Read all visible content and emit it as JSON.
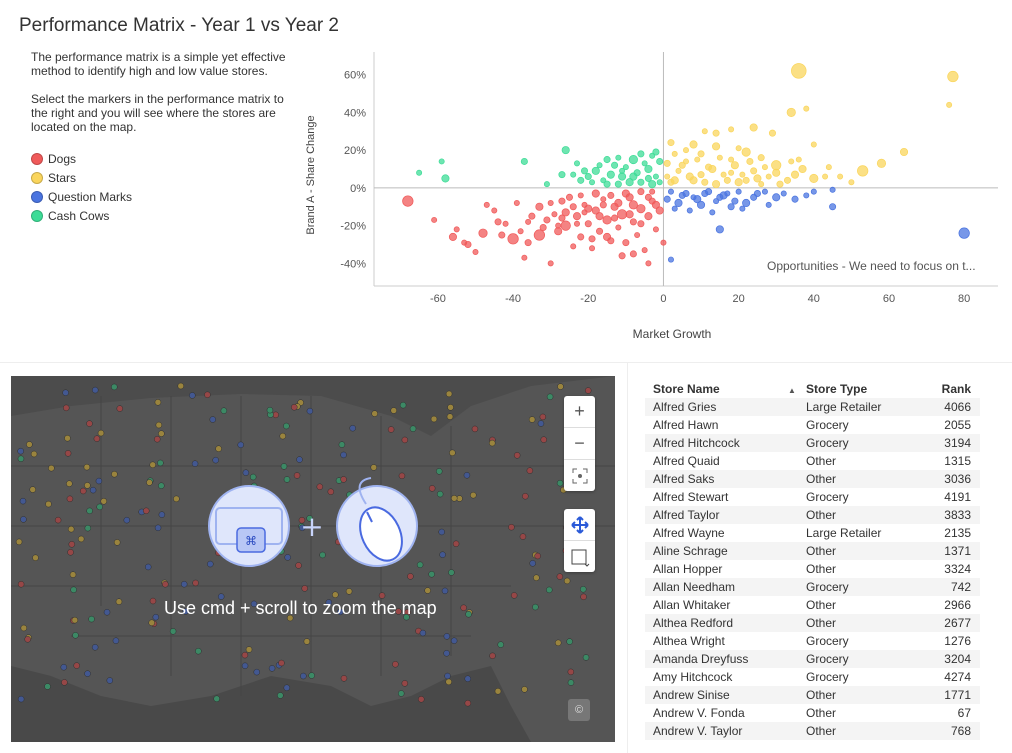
{
  "page": {
    "title": "Performance Matrix - Year 1 vs Year 2",
    "description_1": "The performance matrix is a simple yet effective method to identify high and low value stores.",
    "description_2": "Select the markers in the performance matrix to the right and you will see where the stores are located on the map."
  },
  "legend": [
    {
      "label": "Dogs",
      "color": "#f05a5a"
    },
    {
      "label": "Stars",
      "color": "#fad55c"
    },
    {
      "label": "Question Marks",
      "color": "#4a74e0"
    },
    {
      "label": "Cash Cows",
      "color": "#3ddc97"
    }
  ],
  "chart_data": {
    "type": "scatter",
    "title": "",
    "xlabel": "Market Growth",
    "ylabel": "Brand A - Share Change",
    "xlim": [
      -77,
      89
    ],
    "ylim": [
      -52,
      72
    ],
    "xticks": [
      -60,
      -40,
      -20,
      0,
      20,
      40,
      60,
      80
    ],
    "yticks": [
      -40,
      -20,
      0,
      20,
      40,
      60
    ],
    "ytick_labels": [
      "-40%",
      "-20%",
      "0%",
      "20%",
      "40%",
      "60%"
    ],
    "annotation": "Opportunities - We need to focus on t...",
    "series": [
      {
        "name": "Dogs",
        "color": "#f05a5a",
        "points": [
          [
            -68,
            -7,
            10
          ],
          [
            -61,
            -17,
            5
          ],
          [
            -56,
            -26,
            7
          ],
          [
            -55,
            -22,
            5
          ],
          [
            -53,
            -29,
            5
          ],
          [
            -52,
            -30,
            6
          ],
          [
            -48,
            -24,
            8
          ],
          [
            -45,
            -12,
            5
          ],
          [
            -44,
            -18,
            6
          ],
          [
            -40,
            -27,
            10
          ],
          [
            -38,
            -23,
            5
          ],
          [
            -37,
            -37,
            5
          ],
          [
            -36,
            -29,
            6
          ],
          [
            -33,
            -10,
            7
          ],
          [
            -33,
            -25,
            10
          ],
          [
            -31,
            -17,
            6
          ],
          [
            -30,
            -40,
            5
          ],
          [
            -29,
            -14,
            5
          ],
          [
            -28,
            -23,
            7
          ],
          [
            -27,
            -7,
            6
          ],
          [
            -26,
            -20,
            9
          ],
          [
            -24,
            -31,
            5
          ],
          [
            -23,
            -15,
            7
          ],
          [
            -22,
            -26,
            6
          ],
          [
            -21,
            -9,
            5
          ],
          [
            -20,
            -19,
            6
          ],
          [
            -19,
            -32,
            5
          ],
          [
            -18,
            -12,
            7
          ],
          [
            -17,
            -23,
            6
          ],
          [
            -16,
            -6,
            5
          ],
          [
            -15,
            -17,
            8
          ],
          [
            -14,
            -28,
            6
          ],
          [
            -13,
            -10,
            7
          ],
          [
            -12,
            -21,
            5
          ],
          [
            -11,
            -14,
            9
          ],
          [
            -10,
            -29,
            6
          ],
          [
            -9,
            -5,
            7
          ],
          [
            -8,
            -18,
            6
          ],
          [
            -7,
            -25,
            5
          ],
          [
            -6,
            -11,
            8
          ],
          [
            -5,
            -33,
            5
          ],
          [
            -4,
            -15,
            7
          ],
          [
            -3,
            -7,
            6
          ],
          [
            -2,
            -22,
            5
          ],
          [
            -1,
            -12,
            7
          ],
          [
            -25,
            -5,
            6
          ],
          [
            -22,
            -4,
            5
          ],
          [
            -18,
            -3,
            7
          ],
          [
            -14,
            -4,
            6
          ],
          [
            -10,
            -3,
            7
          ],
          [
            -6,
            -2,
            6
          ],
          [
            -3,
            -2,
            5
          ],
          [
            -12,
            -8,
            7
          ],
          [
            -16,
            -9,
            6
          ],
          [
            -20,
            -11,
            7
          ],
          [
            -8,
            -9,
            8
          ],
          [
            -4,
            -5,
            6
          ],
          [
            -26,
            -13,
            7
          ],
          [
            -30,
            -8,
            5
          ],
          [
            -35,
            -15,
            6
          ],
          [
            -42,
            -19,
            5
          ],
          [
            -47,
            -9,
            5
          ],
          [
            -50,
            -34,
            5
          ],
          [
            -8,
            -35,
            6
          ],
          [
            -4,
            -40,
            5
          ],
          [
            0,
            -29,
            5
          ],
          [
            -11,
            -36,
            6
          ],
          [
            -15,
            -26,
            7
          ],
          [
            -19,
            -27,
            6
          ],
          [
            -23,
            -19,
            5
          ],
          [
            -27,
            -16,
            6
          ],
          [
            -9,
            -14,
            7
          ],
          [
            -13,
            -16,
            6
          ],
          [
            -17,
            -15,
            7
          ],
          [
            -21,
            -13,
            5
          ],
          [
            -6,
            -19,
            6
          ],
          [
            -2,
            -9,
            7
          ],
          [
            -24,
            -10,
            6
          ],
          [
            -28,
            -20,
            5
          ],
          [
            -32,
            -21,
            6
          ],
          [
            -36,
            -18,
            5
          ],
          [
            -39,
            -8,
            5
          ],
          [
            -43,
            -25,
            6
          ]
        ]
      },
      {
        "name": "Stars",
        "color": "#fad55c",
        "points": [
          [
            36,
            62,
            14
          ],
          [
            77,
            59,
            10
          ],
          [
            76,
            44,
            5
          ],
          [
            34,
            40,
            8
          ],
          [
            38,
            42,
            5
          ],
          [
            24,
            32,
            7
          ],
          [
            18,
            31,
            5
          ],
          [
            14,
            29,
            6
          ],
          [
            29,
            29,
            6
          ],
          [
            11,
            30,
            5
          ],
          [
            8,
            23,
            7
          ],
          [
            2,
            24,
            6
          ],
          [
            6,
            20,
            5
          ],
          [
            10,
            18,
            6
          ],
          [
            14,
            22,
            7
          ],
          [
            18,
            15,
            5
          ],
          [
            22,
            19,
            8
          ],
          [
            26,
            16,
            6
          ],
          [
            30,
            12,
            9
          ],
          [
            34,
            14,
            5
          ],
          [
            40,
            23,
            5
          ],
          [
            44,
            11,
            5
          ],
          [
            47,
            6,
            5
          ],
          [
            53,
            9,
            10
          ],
          [
            58,
            13,
            8
          ],
          [
            64,
            19,
            7
          ],
          [
            50,
            3,
            5
          ],
          [
            43,
            6,
            5
          ],
          [
            40,
            5,
            8
          ],
          [
            37,
            10,
            7
          ],
          [
            33,
            4,
            6
          ],
          [
            28,
            6,
            5
          ],
          [
            24,
            9,
            6
          ],
          [
            20,
            3,
            7
          ],
          [
            16,
            7,
            5
          ],
          [
            12,
            11,
            6
          ],
          [
            8,
            4,
            7
          ],
          [
            4,
            9,
            5
          ],
          [
            2,
            3,
            6
          ],
          [
            6,
            14,
            5
          ],
          [
            10,
            7,
            6
          ],
          [
            14,
            2,
            7
          ],
          [
            18,
            8,
            5
          ],
          [
            22,
            4,
            6
          ],
          [
            26,
            2,
            5
          ],
          [
            30,
            8,
            7
          ],
          [
            3,
            18,
            5
          ],
          [
            5,
            12,
            6
          ],
          [
            7,
            6,
            7
          ],
          [
            9,
            15,
            5
          ],
          [
            11,
            3,
            6
          ],
          [
            13,
            10,
            7
          ],
          [
            15,
            16,
            5
          ],
          [
            17,
            4,
            6
          ],
          [
            19,
            12,
            7
          ],
          [
            21,
            7,
            5
          ],
          [
            23,
            14,
            6
          ],
          [
            25,
            5,
            7
          ],
          [
            27,
            11,
            5
          ],
          [
            31,
            2,
            6
          ],
          [
            35,
            7,
            7
          ],
          [
            1,
            6,
            5
          ],
          [
            1,
            13,
            6
          ],
          [
            3,
            4,
            7
          ],
          [
            20,
            21,
            5
          ],
          [
            36,
            15,
            5
          ]
        ]
      },
      {
        "name": "Question Marks",
        "color": "#4a74e0",
        "points": [
          [
            80,
            -24,
            10
          ],
          [
            45,
            -10,
            6
          ],
          [
            45,
            -1,
            5
          ],
          [
            35,
            -6,
            6
          ],
          [
            30,
            -5,
            7
          ],
          [
            28,
            -9,
            5
          ],
          [
            25,
            -3,
            6
          ],
          [
            22,
            -8,
            7
          ],
          [
            20,
            -2,
            5
          ],
          [
            18,
            -10,
            6
          ],
          [
            16,
            -4,
            7
          ],
          [
            14,
            -7,
            5
          ],
          [
            12,
            -2,
            6
          ],
          [
            10,
            -9,
            7
          ],
          [
            8,
            -5,
            5
          ],
          [
            6,
            -3,
            6
          ],
          [
            4,
            -8,
            7
          ],
          [
            2,
            -2,
            5
          ],
          [
            1,
            -6,
            6
          ],
          [
            3,
            -11,
            5
          ],
          [
            5,
            -4,
            6
          ],
          [
            7,
            -12,
            5
          ],
          [
            9,
            -6,
            7
          ],
          [
            11,
            -3,
            6
          ],
          [
            13,
            -13,
            5
          ],
          [
            15,
            -5,
            6
          ],
          [
            17,
            -3,
            5
          ],
          [
            19,
            -7,
            6
          ],
          [
            21,
            -11,
            5
          ],
          [
            24,
            -5,
            6
          ],
          [
            27,
            -2,
            5
          ],
          [
            32,
            -3,
            5
          ],
          [
            15,
            -22,
            7
          ],
          [
            2,
            -38,
            5
          ],
          [
            38,
            -4,
            5
          ],
          [
            40,
            -2,
            5
          ]
        ]
      },
      {
        "name": "Cash Cows",
        "color": "#3ddc97",
        "points": [
          [
            -65,
            8,
            5
          ],
          [
            -58,
            5,
            7
          ],
          [
            -59,
            14,
            5
          ],
          [
            -37,
            14,
            6
          ],
          [
            -26,
            20,
            7
          ],
          [
            -27,
            7,
            6
          ],
          [
            -31,
            2,
            5
          ],
          [
            -22,
            4,
            6
          ],
          [
            -18,
            9,
            7
          ],
          [
            -16,
            4,
            5
          ],
          [
            -13,
            12,
            6
          ],
          [
            -11,
            6,
            7
          ],
          [
            -8,
            15,
            8
          ],
          [
            -6,
            3,
            6
          ],
          [
            -4,
            10,
            7
          ],
          [
            -2,
            6,
            5
          ],
          [
            -1,
            14,
            6
          ],
          [
            -3,
            2,
            7
          ],
          [
            -5,
            13,
            5
          ],
          [
            -7,
            8,
            6
          ],
          [
            -9,
            3,
            7
          ],
          [
            -10,
            11,
            5
          ],
          [
            -12,
            2,
            6
          ],
          [
            -14,
            7,
            7
          ],
          [
            -17,
            12,
            5
          ],
          [
            -20,
            6,
            6
          ],
          [
            -23,
            13,
            5
          ],
          [
            -15,
            2,
            6
          ],
          [
            -19,
            3,
            5
          ],
          [
            -21,
            9,
            6
          ],
          [
            -24,
            7,
            5
          ],
          [
            -2,
            19,
            6
          ],
          [
            -1,
            3,
            5
          ],
          [
            -3,
            17,
            5
          ],
          [
            -6,
            18,
            6
          ],
          [
            -12,
            16,
            5
          ],
          [
            -15,
            15,
            6
          ],
          [
            -8,
            6,
            7
          ],
          [
            -11,
            9,
            5
          ],
          [
            -4,
            5,
            6
          ]
        ]
      }
    ]
  },
  "map": {
    "message": "Use cmd + scroll to zoom the map",
    "zoom_in": "+",
    "zoom_out": "−",
    "copyright": "©",
    "marker_colors": [
      "#e05050",
      "#e8c040",
      "#4a70d8",
      "#3cc888"
    ]
  },
  "table": {
    "headers": [
      "Store Name",
      "Store Type",
      "Rank"
    ],
    "sort_indicator": "▲",
    "rows": [
      [
        "Alfred Gries",
        "Large Retailer",
        "4066"
      ],
      [
        "Alfred Hawn",
        "Grocery",
        "2055"
      ],
      [
        "Alfred Hitchcock",
        "Grocery",
        "3194"
      ],
      [
        "Alfred Quaid",
        "Other",
        "1315"
      ],
      [
        "Alfred Saks",
        "Other",
        "3036"
      ],
      [
        "Alfred Stewart",
        "Grocery",
        "4191"
      ],
      [
        "Alfred Taylor",
        "Other",
        "3833"
      ],
      [
        "Alfred Wayne",
        "Large Retailer",
        "2135"
      ],
      [
        "Aline Schrage",
        "Other",
        "1371"
      ],
      [
        "Allan Hopper",
        "Other",
        "3324"
      ],
      [
        "Allan Needham",
        "Grocery",
        "742"
      ],
      [
        "Allan Whitaker",
        "Other",
        "2966"
      ],
      [
        "Althea Redford",
        "Other",
        "2677"
      ],
      [
        "Althea Wright",
        "Grocery",
        "1276"
      ],
      [
        "Amanda Dreyfuss",
        "Grocery",
        "3204"
      ],
      [
        "Amy Hitchcock",
        "Grocery",
        "4274"
      ],
      [
        "Andrew Sinise",
        "Other",
        "1771"
      ],
      [
        "Andrew V. Fonda",
        "Other",
        "67"
      ],
      [
        "Andrew V. Taylor",
        "Other",
        "768"
      ]
    ]
  }
}
